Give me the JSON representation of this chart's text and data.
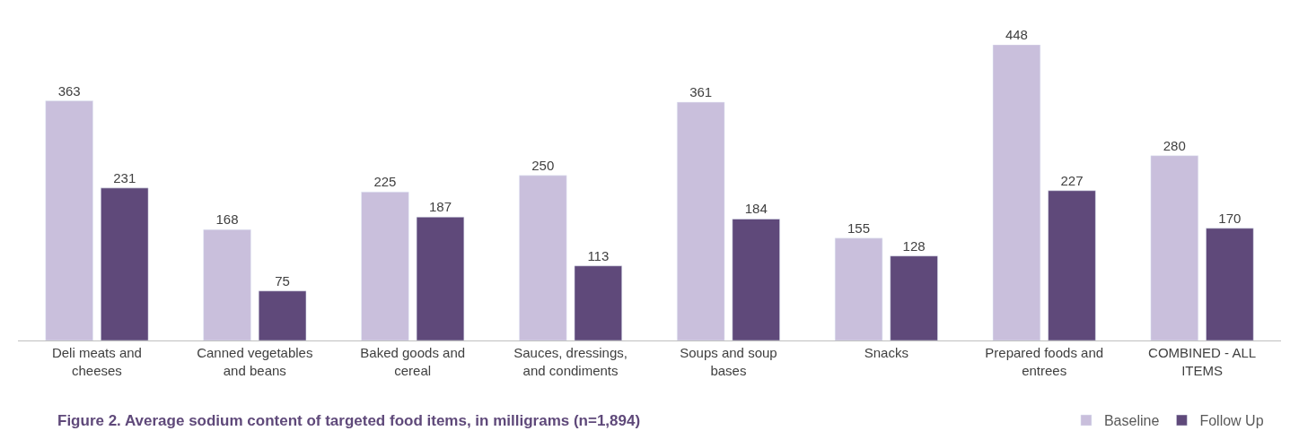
{
  "chart_data": {
    "type": "bar",
    "title": "Figure 2. Average sodium content of targeted food items, in milligrams (n=1,894)",
    "categories": [
      "Deli meats and cheeses",
      "Canned vegetables and beans",
      "Baked goods and cereal",
      "Sauces, dressings, and condiments",
      "Soups and soup bases",
      "Snacks",
      "Prepared foods and entrees",
      "COMBINED - ALL ITEMS"
    ],
    "series": [
      {
        "name": "Baseline",
        "color": "#c9bfdc",
        "values": [
          363,
          168,
          225,
          250,
          361,
          155,
          448,
          280
        ]
      },
      {
        "name": "Follow Up",
        "color": "#5f497a",
        "values": [
          231,
          75,
          187,
          113,
          184,
          128,
          227,
          170
        ]
      }
    ],
    "data_labels": true,
    "legend": "bottom right",
    "tick_labels": "x"
  }
}
